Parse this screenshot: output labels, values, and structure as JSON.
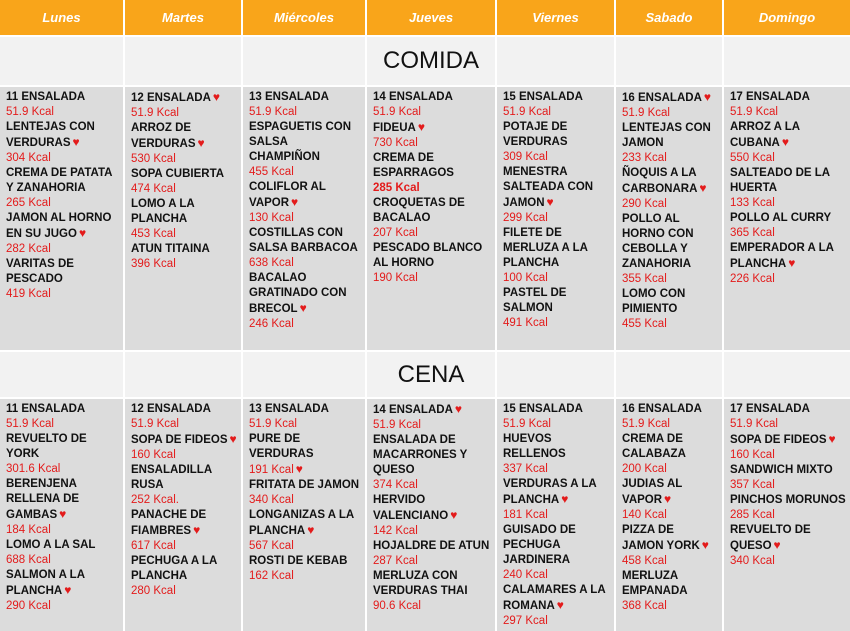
{
  "days": [
    "Lunes",
    "Martes",
    "Miércoles",
    "Jueves",
    "Viernes",
    "Sabado",
    "Domingo"
  ],
  "sections": [
    {
      "title": "COMIDA",
      "days": [
        {
          "items": [
            {
              "name": "11 ENSALADA",
              "kcal": "51.9 Kcal"
            },
            {
              "name": "LENTEJAS  CON VERDURAS",
              "kcal": "304 Kcal"
            },
            {
              "name": "CREMA DE PATATA Y ZANAHORIA",
              "kcal": "265 Kcal"
            },
            {
              "name": "JAMON AL HORNO EN SU JUGO",
              "kcal": "282 Kcal"
            },
            {
              "name": "VARITAS DE PESCADO",
              "kcal": "419 Kcal"
            }
          ]
        },
        {
          "items": [
            {
              "name": "12 ENSALADA",
              "kcal": "51.9 Kcal"
            },
            {
              "name": "ARROZ DE VERDURAS",
              "kcal": "530 Kcal"
            },
            {
              "name": "SOPA CUBIERTA",
              "kcal": "474 Kcal"
            },
            {
              "name": "LOMO A LA PLANCHA",
              "kcal": "453 Kcal"
            },
            {
              "name": "ATUN TITAINA",
              "kcal": "396 Kcal"
            }
          ]
        },
        {
          "items": [
            {
              "name": "13 ENSALADA",
              "kcal": "51.9 Kcal"
            },
            {
              "name": "ESPAGUETIS CON SALSA CHAMPIÑON",
              "kcal": "455 Kcal"
            },
            {
              "name": "COLIFLOR AL VAPOR",
              "kcal": "130 Kcal"
            },
            {
              "name": "COSTILLAS CON SALSA BARBACOA",
              "kcal": "638 Kcal"
            },
            {
              "name": "BACALAO GRATINADO CON BRECOL",
              "kcal": "246 Kcal"
            }
          ]
        },
        {
          "items": [
            {
              "name": "14 ENSALADA",
              "kcal": "51.9 Kcal"
            },
            {
              "name": "FIDEUA",
              "kcal": "730 Kcal"
            },
            {
              "name": "CREMA DE ESPARRAGOS",
              "kcal": "285 Kcal"
            },
            {
              "name": "CROQUETAS DE BACALAO",
              "kcal": "207 Kcal"
            },
            {
              "name": "PESCADO BLANCO AL HORNO",
              "kcal": "190 Kcal"
            }
          ]
        },
        {
          "items": [
            {
              "name": "15 ENSALADA",
              "kcal": "51.9 Kcal"
            },
            {
              "name": "POTAJE DE VERDURAS",
              "kcal": "309 Kcal"
            },
            {
              "name": "MENESTRA SALTEADA CON JAMON",
              "kcal": "299 Kcal"
            },
            {
              "name": "FILETE DE MERLUZA A LA PLANCHA",
              "kcal": "100 Kcal"
            },
            {
              "name": "PASTEL DE SALMON",
              "kcal": "491 Kcal"
            }
          ]
        },
        {
          "items": [
            {
              "name": "16 ENSALADA",
              "kcal": "51.9 Kcal"
            },
            {
              "name": "LENTEJAS CON JAMON",
              "kcal": "233 Kcal"
            },
            {
              "name": "ÑOQUIS A LA CARBONARA",
              "kcal": "290 Kcal"
            },
            {
              "name": "POLLO AL HORNO CON CEBOLLA Y ZANAHORIA",
              "kcal": "355 Kcal"
            },
            {
              "name": "LOMO CON PIMIENTO",
              "kcal": "455 Kcal"
            }
          ]
        },
        {
          "items": [
            {
              "name": "17 ENSALADA",
              "kcal": "51.9 Kcal"
            },
            {
              "name": "ARROZ A LA CUBANA",
              "kcal": "550 Kcal"
            },
            {
              "name": "SALTEADO DE LA HUERTA",
              "kcal": "133 Kcal"
            },
            {
              "name": "POLLO AL CURRY",
              "kcal": "365 Kcal"
            },
            {
              "name": "EMPERADOR A LA PLANCHA",
              "kcal": "226 Kcal"
            }
          ]
        }
      ]
    },
    {
      "title": "CENA",
      "days": [
        {
          "items": [
            {
              "name": "11 ENSALADA",
              "kcal": "51.9 Kcal"
            },
            {
              "name": "REVUELTO DE YORK",
              "kcal": "301.6 Kcal"
            },
            {
              "name": "BERENJENA RELLENA DE GAMBAS",
              "kcal": "184 Kcal"
            },
            {
              "name": "LOMO A LA SAL",
              "kcal": "688 Kcal"
            },
            {
              "name": "SALMON A LA PLANCHA",
              "kcal": "290 Kcal"
            }
          ]
        },
        {
          "items": [
            {
              "name": "12 ENSALADA",
              "kcal": "51.9 Kcal"
            },
            {
              "name": "SOPA DE FIDEOS",
              "kcal": "160 Kcal"
            },
            {
              "name": "ENSALADILLA RUSA",
              "kcal": "252 Kcal."
            },
            {
              "name": "PANACHE DE FIAMBRES",
              "kcal": "617 Kcal"
            },
            {
              "name": "PECHUGA A LA PLANCHA",
              "kcal": "280 Kcal"
            }
          ]
        },
        {
          "items": [
            {
              "name": "13 ENSALADA",
              "kcal": "51.9 Kcal"
            },
            {
              "name": "PURE DE VERDURAS",
              "kcal": "191 Kcal"
            },
            {
              "name": "FRITATA DE JAMON",
              "kcal": "340 Kcal"
            },
            {
              "name": "LONGANIZAS A LA PLANCHA",
              "kcal": "567 Kcal"
            },
            {
              "name": "ROSTI DE KEBAB",
              "kcal": "162 Kcal"
            }
          ]
        },
        {
          "items": [
            {
              "name": "14 ENSALADA",
              "kcal": "51.9 Kcal"
            },
            {
              "name": "ENSALADA DE MACARRONES Y QUESO",
              "kcal": "374 Kcal"
            },
            {
              "name": "HERVIDO VALENCIANO",
              "kcal": "142 Kcal"
            },
            {
              "name": "HOJALDRE DE ATUN",
              "kcal": "287 Kcal"
            },
            {
              "name": "MERLUZA CON VERDURAS THAI",
              "kcal": "90.6 Kcal"
            }
          ]
        },
        {
          "items": [
            {
              "name": "15 ENSALADA",
              "kcal": "51.9 Kcal"
            },
            {
              "name": "HUEVOS RELLENOS",
              "kcal": "337 Kcal"
            },
            {
              "name": "VERDURAS A LA PLANCHA",
              "kcal": "181 Kcal"
            },
            {
              "name": "GUISADO DE PECHUGA JARDINERA",
              "kcal": "240 Kcal"
            },
            {
              "name": "CALAMARES A LA ROMANA",
              "kcal": "297 Kcal"
            }
          ]
        },
        {
          "items": [
            {
              "name": "16 ENSALADA",
              "kcal": "51.9 Kcal"
            },
            {
              "name": "CREMA DE CALABAZA",
              "kcal": "200 Kcal"
            },
            {
              "name": "JUDIAS AL VAPOR",
              "kcal": "140 Kcal"
            },
            {
              "name": "PIZZA DE JAMON YORK",
              "kcal": "458 Kcal"
            },
            {
              "name": "MERLUZA EMPANADA",
              "kcal": "368 Kcal"
            }
          ]
        },
        {
          "items": [
            {
              "name": "17 ENSALADA",
              "kcal": "51.9 Kcal"
            },
            {
              "name": "SOPA DE FIDEOS",
              "kcal": "160 Kcal"
            },
            {
              "name": "SANDWICH MIXTO",
              "kcal": "357 Kcal"
            },
            {
              "name": "PINCHOS MORUNOS",
              "kcal": "285 Kcal"
            },
            {
              "name": "REVUELTO DE QUESO",
              "kcal": "340 Kcal"
            }
          ]
        }
      ]
    }
  ]
}
